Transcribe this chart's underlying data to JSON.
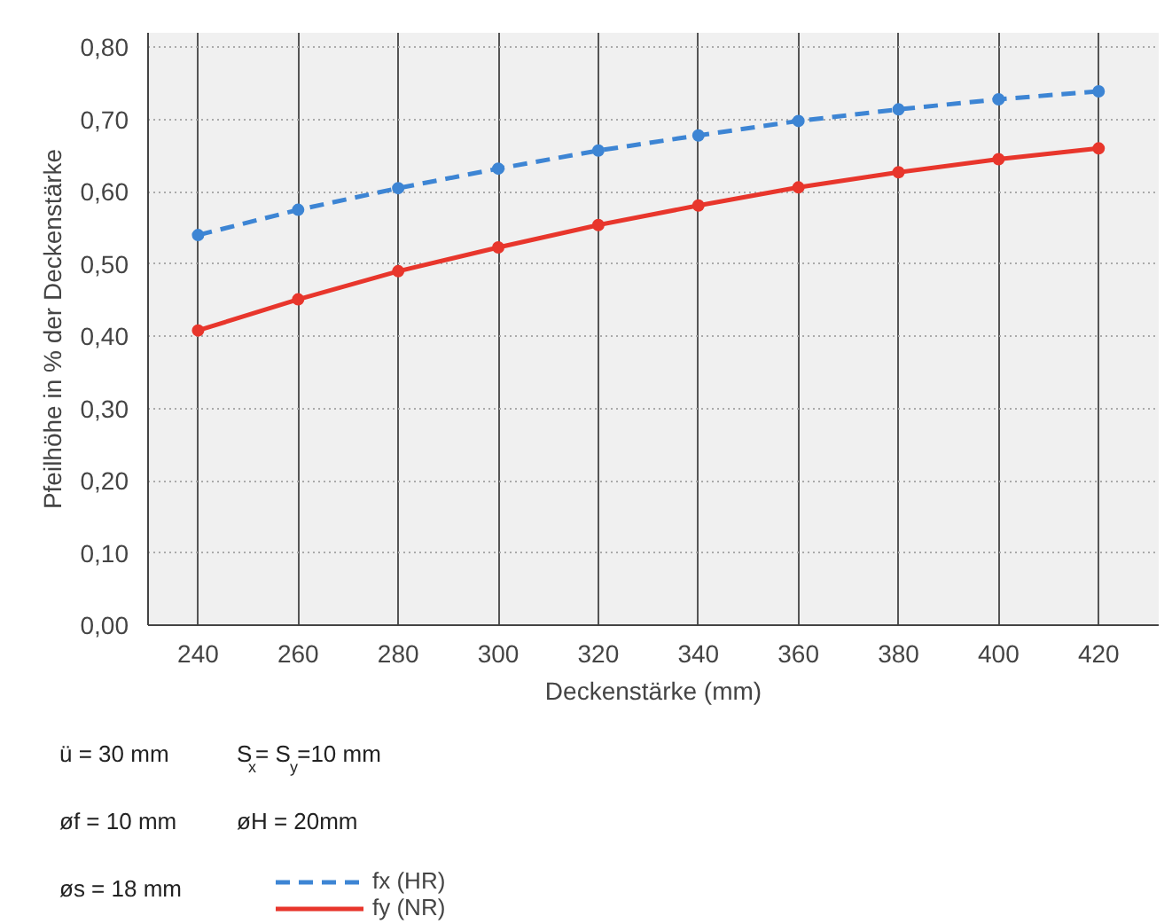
{
  "chart_data": {
    "type": "line",
    "xlabel": "Deckenstärke (mm)",
    "ylabel": "Pfeilhöhe in % der Deckenstärke",
    "x": [
      240,
      260,
      280,
      300,
      320,
      340,
      360,
      380,
      400,
      420
    ],
    "series": [
      {
        "name": "fx (HR)",
        "color": "#3d85d4",
        "line_style": "dashed",
        "values": [
          0.54,
          0.575,
          0.605,
          0.632,
          0.657,
          0.678,
          0.698,
          0.714,
          0.728,
          0.739
        ]
      },
      {
        "name": "fy (NR)",
        "color": "#e8362c",
        "line_style": "solid",
        "values": [
          0.408,
          0.451,
          0.49,
          0.523,
          0.554,
          0.581,
          0.606,
          0.627,
          0.645,
          0.66
        ]
      }
    ],
    "marker": "circle",
    "xlim": [
      230,
      432
    ],
    "ylim": [
      0,
      0.82
    ],
    "xticks": [
      240,
      260,
      280,
      300,
      320,
      340,
      360,
      380,
      400,
      420
    ],
    "yticks": [
      {
        "value": 0,
        "label": "0,00"
      },
      {
        "value": 0.1,
        "label": "0,10"
      },
      {
        "value": 0.2,
        "label": "0,20"
      },
      {
        "value": 0.3,
        "label": "0,30"
      },
      {
        "value": 0.4,
        "label": "0,40"
      },
      {
        "value": 0.5,
        "label": "0,50"
      },
      {
        "value": 0.6,
        "label": "0,60"
      },
      {
        "value": 0.7,
        "label": "0,70"
      },
      {
        "value": 0.8,
        "label": "0,80"
      }
    ],
    "grid": true,
    "legend": "bottom left",
    "annotations": [
      "ü = 30 mm",
      "S$_{x}$= S$_{y}$=10 mm",
      "øf = 10 mm",
      "øH = 20mm",
      "øs = 18 mm"
    ]
  }
}
